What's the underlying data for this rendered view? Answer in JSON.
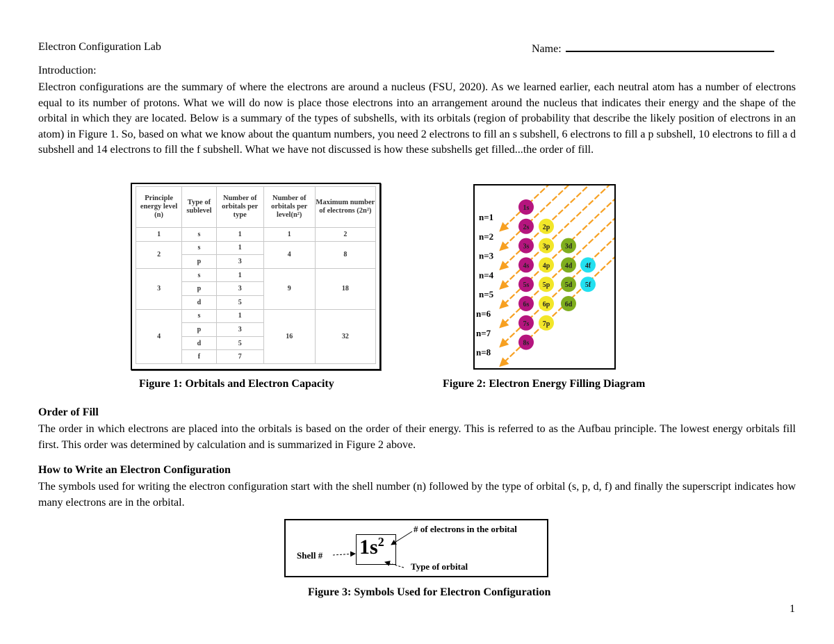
{
  "header": {
    "title": "Electron Configuration Lab",
    "name_label": "Name:"
  },
  "intro": {
    "heading": "Introduction:",
    "body": "Electron configurations are the summary of where the electrons are around a nucleus (FSU, 2020). As we learned earlier, each neutral atom has a number of electrons equal to its number of protons. What we will do now is place those electrons into an arrangement around the nucleus that indicates their energy and the shape of the orbital in which they are located. Below is a summary of the types of subshells, with its orbitals (region of probability that describe the likely position of electrons in an atom) in Figure 1. So, based on what we know about the quantum numbers, you need 2 electrons to fill an s subshell, 6 electrons to fill a p subshell, 10 electrons to fill a d subshell and 14 electrons to fill the f subshell. What we have not discussed is how these subshells get filled...the order of fill."
  },
  "figure1": {
    "caption": "Figure 1:  Orbitals and Electron Capacity",
    "headers": [
      "Principle energy level (n)",
      "Type of sublevel",
      "Number of orbitals per type",
      "Number of orbitals per level(n²)",
      "Maximum number of electrons (2n²)"
    ],
    "groups": [
      {
        "n": "1",
        "per_level": "1",
        "max": "2",
        "rows": [
          [
            "s",
            "1"
          ]
        ]
      },
      {
        "n": "2",
        "per_level": "4",
        "max": "8",
        "rows": [
          [
            "s",
            "1"
          ],
          [
            "p",
            "3"
          ]
        ]
      },
      {
        "n": "3",
        "per_level": "9",
        "max": "18",
        "rows": [
          [
            "s",
            "1"
          ],
          [
            "p",
            "3"
          ],
          [
            "d",
            "5"
          ]
        ]
      },
      {
        "n": "4",
        "per_level": "16",
        "max": "32",
        "rows": [
          [
            "s",
            "1"
          ],
          [
            "p",
            "3"
          ],
          [
            "d",
            "5"
          ],
          [
            "f",
            "7"
          ]
        ]
      }
    ]
  },
  "figure2": {
    "caption": "Figure 2:  Electron Energy Filling Diagram",
    "levels": [
      "n=1",
      "n=2",
      "n=3",
      "n=4",
      "n=5",
      "n=6",
      "n=7",
      "n=8"
    ],
    "orbitals": [
      "1s",
      "2s",
      "2p",
      "3s",
      "3p",
      "3d",
      "4s",
      "4p",
      "4d",
      "4f",
      "5s",
      "5p",
      "5d",
      "5f",
      "6s",
      "6p",
      "6d",
      "7s",
      "7p",
      "8s"
    ],
    "colors": {
      "s": "#b5157e",
      "p": "#f2e629",
      "d": "#7fae1e",
      "f": "#22e0f0",
      "arrow": "#f7a021"
    }
  },
  "order_of_fill": {
    "heading": "Order of Fill",
    "body": "The order in which electrons are placed into the orbitals is based on the order of their energy. This is referred to as the Aufbau principle. The lowest energy orbitals fill first. This order was determined by calculation and is summarized in Figure 2 above."
  },
  "how_to": {
    "heading": "How to Write an Electron Configuration",
    "body": "The symbols used for writing the electron configuration start with the shell number (n) followed by the type of orbital (s, p, d, f) and finally the superscript indicates how many electrons are in the orbital."
  },
  "figure3": {
    "caption": "Figure 3:  Symbols Used for Electron Configuration",
    "symbol": "1s",
    "superscript": "2",
    "shell_label": "Shell #",
    "electrons_label": "# of electrons in the orbital",
    "type_label": "Type of orbital"
  },
  "page_number": "1"
}
